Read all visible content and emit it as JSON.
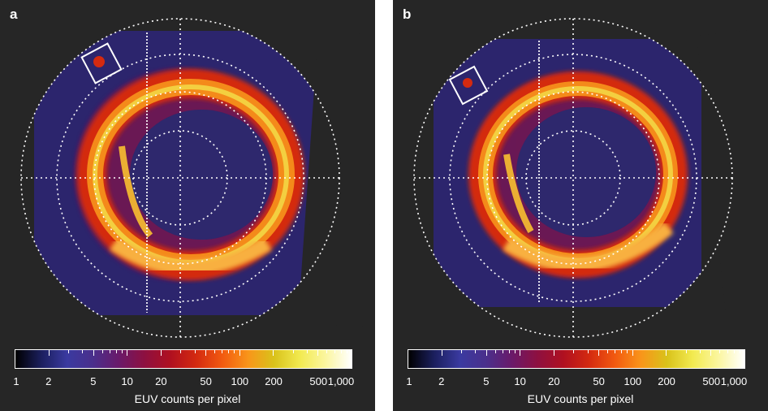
{
  "panels": [
    {
      "letter": "a"
    },
    {
      "letter": "b"
    }
  ],
  "colorbar": {
    "label": "EUV counts per pixel",
    "tick_labels": [
      "1",
      "2",
      "5",
      "10",
      "20",
      "50",
      "100",
      "200",
      "500",
      "1,000"
    ],
    "scale": "log",
    "range": [
      1,
      1000
    ],
    "colormap": [
      "#000000",
      "#1b1f5e",
      "#3a3aa0",
      "#4a2f8c",
      "#6a1a6a",
      "#8e1040",
      "#b01020",
      "#d42a10",
      "#f25a10",
      "#f9951a",
      "#d9c21a",
      "#f2ea50",
      "#fbf6a0",
      "#ffffff"
    ]
  }
}
